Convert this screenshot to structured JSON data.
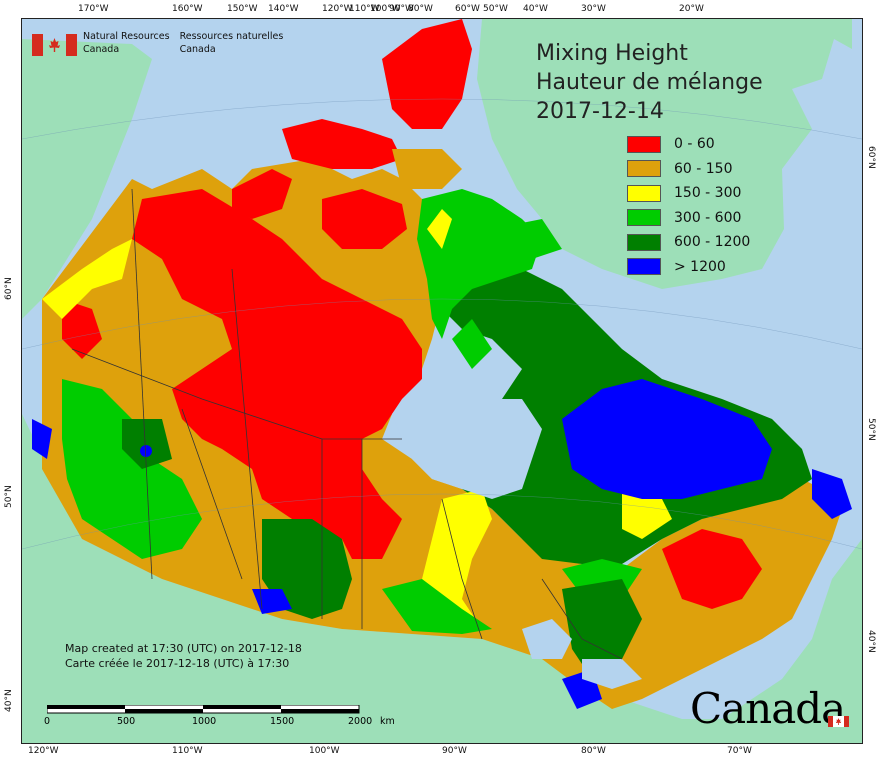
{
  "map": {
    "title_lines": [
      "Mixing Height",
      "Hauteur de mélange",
      "2017-12-14"
    ],
    "legend": [
      {
        "label": "0 - 60",
        "color": "#fe0000"
      },
      {
        "label": "60 - 150",
        "color": "#dea10c"
      },
      {
        "label": "150 - 300",
        "color": "#ffff00"
      },
      {
        "label": "300 - 600",
        "color": "#00cc00"
      },
      {
        "label": "600 - 1200",
        "color": "#007f00"
      },
      {
        "label": "> 1200",
        "color": "#0000ff"
      }
    ],
    "organization": {
      "en_line1": "Natural Resources",
      "en_line2": "Canada",
      "fr_line1": "Ressources naturelles",
      "fr_line2": "Canada"
    },
    "credits": {
      "en": "Map created at 17:30 (UTC) on 2017-12-18",
      "fr": "Carte créée le 2017-12-18 (UTC) à 17:30"
    },
    "wordmark": "Canada",
    "scale_bar": {
      "labels": [
        "0",
        "500",
        "1000",
        "1500",
        "2000"
      ],
      "unit": "km"
    },
    "top_ticks": [
      "170°W",
      "160°W",
      "150°W",
      "140°W",
      "120°W",
      "110°W",
      "100°W",
      "90°W",
      "80°W",
      "60°W",
      "50°W",
      "40°W",
      "30°W",
      "20°W"
    ],
    "bottom_ticks": [
      "120°W",
      "110°W",
      "100°W",
      "90°W",
      "80°W",
      "70°W"
    ],
    "left_ticks": [
      "60°N",
      "50°N",
      "40°N"
    ],
    "right_ticks": [
      "60°N",
      "50°N",
      "40°N"
    ],
    "colors": {
      "ocean": "#b4d3ee",
      "land_outside": "#9ddfb8",
      "greenland": "#9ddfb8",
      "border_line": "#333333"
    }
  }
}
